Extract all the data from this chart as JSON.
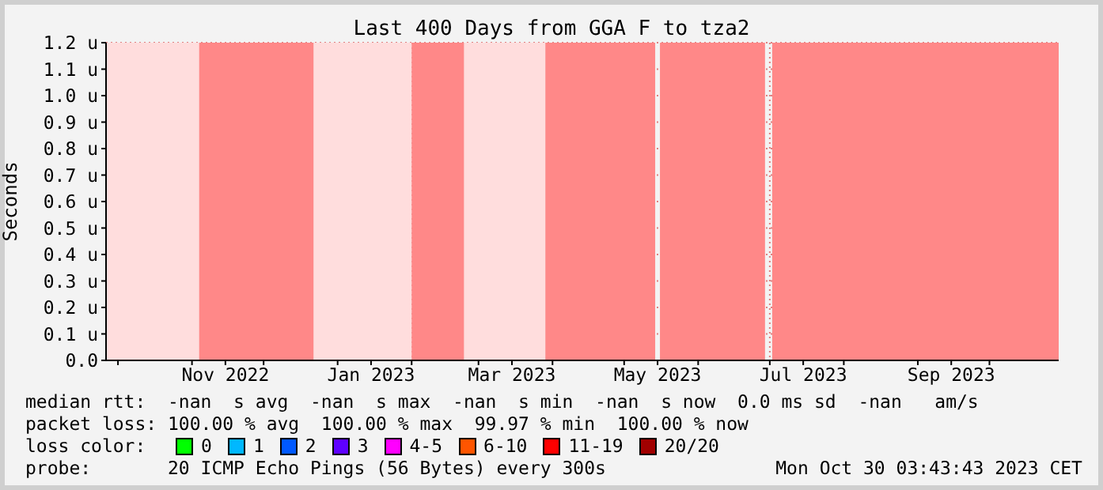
{
  "chart_data": {
    "type": "line",
    "title": "Last 400 Days from GGA F to tza2",
    "ylabel": "Seconds",
    "xlim": [
      "2022-09-26",
      "2023-10-30"
    ],
    "xticks": [
      {
        "value": "2022-10-01",
        "label": null
      },
      {
        "value": "2022-11-01",
        "label": null
      },
      {
        "value": "2022-11-15",
        "label": "Nov 2022"
      },
      {
        "value": "2022-12-01",
        "label": null
      },
      {
        "value": "2023-01-01",
        "label": null
      },
      {
        "value": "2023-01-15",
        "label": "Jan 2023"
      },
      {
        "value": "2023-02-01",
        "label": null
      },
      {
        "value": "2023-03-01",
        "label": null
      },
      {
        "value": "2023-03-15",
        "label": "Mar 2023"
      },
      {
        "value": "2023-04-01",
        "label": null
      },
      {
        "value": "2023-05-01",
        "label": null
      },
      {
        "value": "2023-05-15",
        "label": "May 2023"
      },
      {
        "value": "2023-06-01",
        "label": null
      },
      {
        "value": "2023-07-01",
        "label": null
      },
      {
        "value": "2023-07-15",
        "label": "Jul 2023"
      },
      {
        "value": "2023-08-01",
        "label": null
      },
      {
        "value": "2023-09-01",
        "label": null
      },
      {
        "value": "2023-09-15",
        "label": "Sep 2023"
      },
      {
        "value": "2023-10-01",
        "label": null
      }
    ],
    "ylim": [
      0,
      1.2
    ],
    "yticks": [
      {
        "value": 0,
        "label": "0.0"
      },
      {
        "value": 0.1,
        "label": "0.1 u"
      },
      {
        "value": 0.2,
        "label": "0.2 u"
      },
      {
        "value": 0.3,
        "label": "0.3 u"
      },
      {
        "value": 0.4,
        "label": "0.4 u"
      },
      {
        "value": 0.5,
        "label": "0.5 u"
      },
      {
        "value": 0.6,
        "label": "0.6 u"
      },
      {
        "value": 0.7,
        "label": "0.7 u"
      },
      {
        "value": 0.8,
        "label": "0.8 u"
      },
      {
        "value": 0.9,
        "label": "0.9 u"
      },
      {
        "value": 1.0,
        "label": "1.0 u"
      },
      {
        "value": 1.1,
        "label": "1.1 u"
      },
      {
        "value": 1.2,
        "label": "1.2 u"
      }
    ],
    "grid": true,
    "bands": [
      {
        "axis": "x",
        "from": "2022-09-26",
        "to": "2022-11-04",
        "color": "#ffdddd"
      },
      {
        "axis": "x",
        "from": "2022-11-04",
        "to": "2022-12-22",
        "color": "#ff8888"
      },
      {
        "axis": "x",
        "from": "2022-12-22",
        "to": "2023-02-01",
        "color": "#ffdddd"
      },
      {
        "axis": "x",
        "from": "2023-02-01",
        "to": "2023-02-23",
        "color": "#ff8888"
      },
      {
        "axis": "x",
        "from": "2023-02-23",
        "to": "2023-03-29",
        "color": "#ffdddd"
      },
      {
        "axis": "x",
        "from": "2023-03-29",
        "to": "2023-05-14",
        "color": "#ff8888"
      },
      {
        "axis": "x",
        "from": "2023-05-16",
        "to": "2023-06-29",
        "color": "#ff8888"
      },
      {
        "axis": "x",
        "from": "2023-07-02",
        "to": "2023-10-30",
        "color": "#ff8888"
      }
    ],
    "annotations": [
      "median rtt:  -nan  s avg  -nan  s max  -nan  s min  -nan  s now  0.0 ms sd  -nan   am/s",
      "packet loss: 100.00 % avg  100.00 % max  99.97 % min  100.00 % now",
      "loss color:",
      "0",
      "1",
      "2",
      "3",
      "4-5",
      "6-10",
      "11-19",
      "20/20",
      "probe:       20 ICMP Echo Pings (56 Bytes) every 300s",
      "Mon Oct 30 03:43:43 2023 CET"
    ]
  }
}
